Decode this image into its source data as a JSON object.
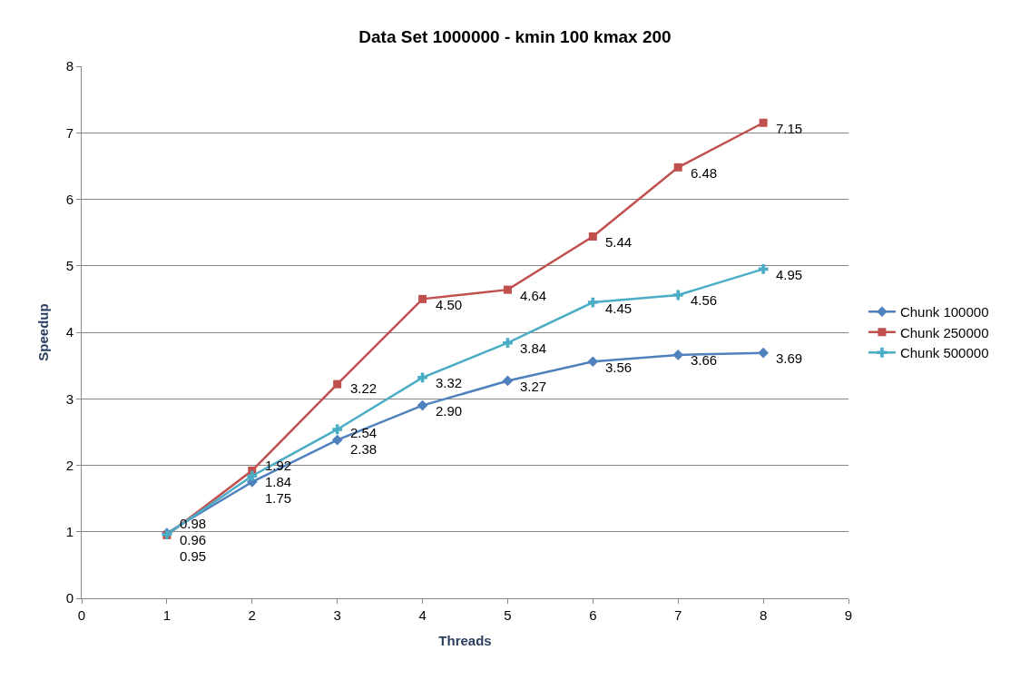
{
  "chart_data": {
    "type": "line",
    "title": "Data Set 1000000 - kmin 100 kmax 200",
    "xlabel": "Threads",
    "ylabel": "Speedup",
    "x": [
      1,
      2,
      3,
      4,
      5,
      6,
      7,
      8
    ],
    "series": [
      {
        "name": "Chunk 100000",
        "color": "#4f81bd",
        "marker": "diamond",
        "values": [
          0.98,
          1.75,
          2.38,
          2.9,
          3.27,
          3.56,
          3.66,
          3.69
        ],
        "value_labels": [
          "0.98",
          "1.75",
          "2.38",
          "2.90",
          "3.27",
          "3.56",
          "3.66",
          "3.69"
        ]
      },
      {
        "name": "Chunk 250000",
        "color": "#c0504d",
        "marker": "square",
        "values": [
          0.95,
          1.92,
          3.22,
          4.5,
          4.64,
          5.44,
          6.48,
          7.15
        ],
        "value_labels": [
          "0.95",
          "1.92",
          "3.22",
          "4.50",
          "4.64",
          "5.44",
          "6.48",
          "7.15"
        ]
      },
      {
        "name": "Chunk 500000",
        "color": "#4bacc6",
        "marker": "cross",
        "values": [
          0.96,
          1.84,
          2.54,
          3.32,
          3.84,
          4.45,
          4.56,
          4.95
        ],
        "value_labels": [
          "0.96",
          "1.84",
          "2.54",
          "3.32",
          "3.84",
          "4.45",
          "4.56",
          "4.95"
        ]
      }
    ],
    "xlim": [
      0,
      9
    ],
    "xticks": [
      0,
      1,
      2,
      3,
      4,
      5,
      6,
      7,
      8,
      9
    ],
    "ylim": [
      0,
      8
    ],
    "yticks": [
      0,
      1,
      2,
      3,
      4,
      5,
      6,
      7,
      8
    ],
    "grid": "y",
    "legend": "right",
    "line_style": "solid"
  }
}
